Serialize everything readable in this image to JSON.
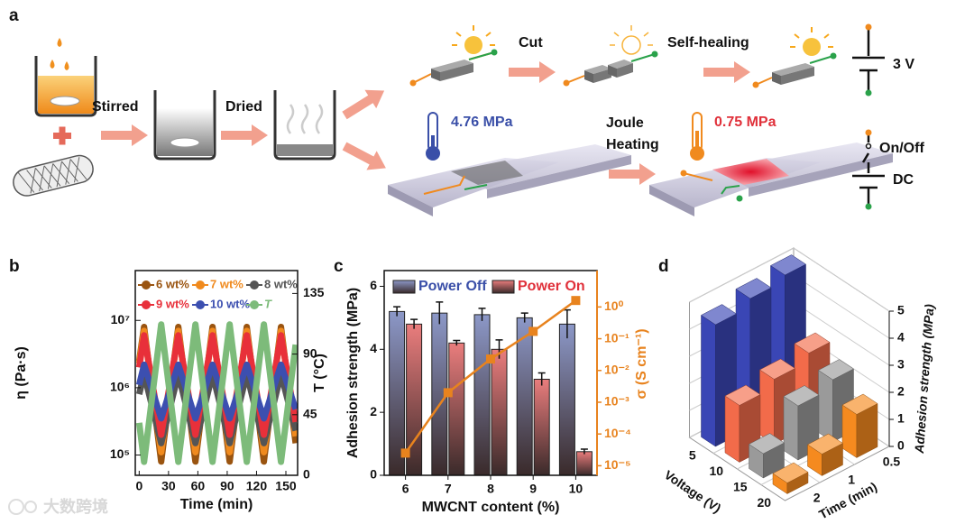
{
  "diagram": {
    "label": "a",
    "steps": [
      "Stirred",
      "Dried"
    ],
    "actions": [
      "Cut",
      "Self-healing"
    ],
    "voltage": "3 V",
    "strength_before": "4.76 MPa",
    "process": [
      "Joule",
      "Heating"
    ],
    "strength_after": "0.75 MPa",
    "switch": "On/Off",
    "source": "DC"
  },
  "watermark": "大数跨境",
  "chart_data": [
    {
      "panel": "b",
      "type": "line",
      "xlabel": "Time (min)",
      "ylabel": "η (Pa·s)",
      "y2label": "T (°C)",
      "ylog": true,
      "legend": "upper left",
      "x": [
        0,
        5,
        22.5,
        40,
        57.5,
        75,
        92.5,
        110,
        127.5,
        145,
        160
      ],
      "xlim": [
        -4,
        162
      ],
      "xticks": [
        0,
        30,
        60,
        90,
        120,
        150
      ],
      "ylim": [
        50000,
        55000000
      ],
      "yticks": [
        {
          "value": 100000,
          "label": "10⁵"
        },
        {
          "value": 1000000,
          "label": "10⁶"
        },
        {
          "value": 10000000,
          "label": "10⁷"
        }
      ],
      "y2lim": [
        0,
        152
      ],
      "y2ticks": [
        0,
        45,
        90,
        135
      ],
      "series": [
        {
          "name": "6 wt%",
          "color": "#9a5410",
          "values": [
            2500000,
            8000000,
            80000,
            8000000,
            80000,
            8000000,
            80000,
            8000000,
            80000,
            8000000,
            150000
          ]
        },
        {
          "name": "7 wt%",
          "color": "#f08a1e",
          "values": [
            2300000,
            7000000,
            110000,
            7000000,
            110000,
            7000000,
            110000,
            7000000,
            110000,
            7000000,
            190000
          ]
        },
        {
          "name": "8 wt%",
          "color": "#555555",
          "values": [
            800000,
            1600000,
            150000,
            1600000,
            150000,
            1600000,
            150000,
            1600000,
            150000,
            1600000,
            230000
          ]
        },
        {
          "name": "9 wt%",
          "color": "#e8303a",
          "values": [
            2000000,
            6000000,
            200000,
            6000000,
            200000,
            6000000,
            200000,
            6000000,
            200000,
            6000000,
            310000
          ]
        },
        {
          "name": "10 wt%",
          "color": "#3c4fb0",
          "values": [
            1100000,
            2200000,
            350000,
            2200000,
            350000,
            2200000,
            350000,
            2200000,
            350000,
            2200000,
            480000
          ]
        },
        {
          "name": "T",
          "color": "#7dbb7a",
          "axis": "y2",
          "values": [
            39,
            10,
            112,
            10,
            112,
            10,
            112,
            10,
            112,
            10,
            97
          ]
        }
      ]
    },
    {
      "panel": "c",
      "type": "bar",
      "xlabel": "MWCNT content (%)",
      "ylabel": "Adhesion strength (MPa)",
      "y2label": "σ (S cm⁻¹)",
      "legend": "upper center",
      "categories": [
        "6",
        "7",
        "8",
        "9",
        "10"
      ],
      "ylim": [
        0,
        6.5
      ],
      "yticks": [
        0,
        2,
        4,
        6
      ],
      "y2log": true,
      "y2lim": [
        5e-06,
        14
      ],
      "y2ticks": [
        {
          "value": 1e-05,
          "label": "10⁻⁵"
        },
        {
          "value": 0.0001,
          "label": "10⁻⁴"
        },
        {
          "value": 0.001,
          "label": "10⁻³"
        },
        {
          "value": 0.01,
          "label": "10⁻²"
        },
        {
          "value": 0.1,
          "label": "10⁻¹"
        },
        {
          "value": 1,
          "label": "10⁰"
        }
      ],
      "y2color": "#e8831e",
      "series": [
        {
          "name": "Power Off",
          "color": "#8c98c8",
          "text_color": "#3a4fa8",
          "values": [
            5.2,
            5.15,
            5.1,
            5.0,
            4.8
          ],
          "errors": [
            0.15,
            0.35,
            0.2,
            0.15,
            0.45
          ]
        },
        {
          "name": "Power On",
          "color": "#ea7d7d",
          "text_color": "#e0303a",
          "values": [
            4.8,
            4.2,
            4.0,
            3.05,
            0.75
          ],
          "errors": [
            0.15,
            0.08,
            0.3,
            0.2,
            0.08
          ]
        }
      ],
      "line": {
        "color": "#e8831e",
        "axis": "y2",
        "values": [
          2.5e-05,
          0.002,
          0.023,
          0.17,
          1.6
        ]
      }
    },
    {
      "panel": "d",
      "type": "bar3d",
      "xlabel": "Voltage (V)",
      "ylabel": "Time (min)",
      "zlabel": "Adhesion strength (MPa)",
      "x_categories": [
        "5",
        "10",
        "15",
        "20"
      ],
      "y_categories": [
        "0.5",
        "1",
        "2"
      ],
      "values": [
        [
          5.0,
          4.8,
          4.5
        ],
        [
          2.7,
          2.4,
          2.1
        ],
        [
          2.3,
          2.0,
          0.9
        ],
        [
          1.6,
          0.8,
          0.4
        ]
      ],
      "colors": [
        "#3a46b5",
        "#f26b4a",
        "#9a9a9a",
        "#f58a1f"
      ],
      "zlim": [
        0,
        5
      ],
      "zticks": [
        0,
        1,
        2,
        3,
        4,
        5
      ]
    }
  ]
}
